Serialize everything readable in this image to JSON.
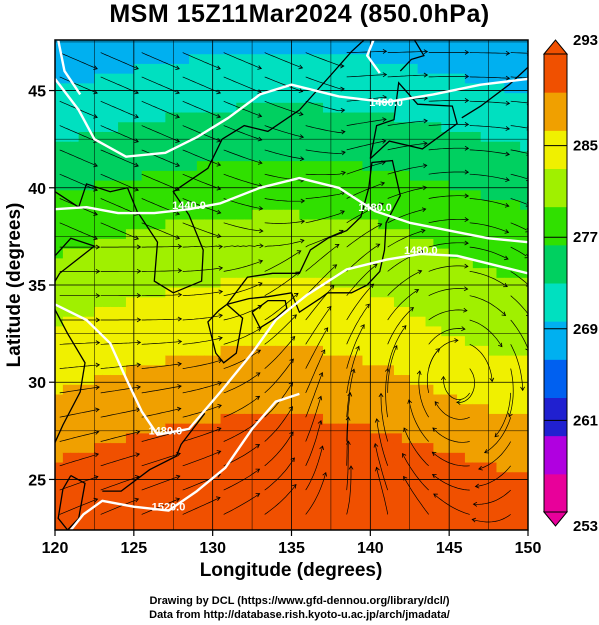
{
  "title": "MSM 15Z11Mar2024 (850.0hPa)",
  "credits": {
    "line1": "Drawing by DCL (https://www.gfd-dennou.org/library/dcl/)",
    "line2": "Data from http://database.rish.kyoto-u.ac.jp/arch/jmadata/"
  },
  "chart_data": {
    "type": "heatmap",
    "title": "MSM 15Z11Mar2024 (850.0hPa)",
    "xlabel": "Longitude (degrees)",
    "ylabel": "Latitude  (degrees)",
    "xlim": [
      120,
      150
    ],
    "ylim": [
      22.4,
      47.6
    ],
    "xticks": [
      120,
      125,
      130,
      135,
      140,
      145,
      150
    ],
    "yticks": [
      25,
      30,
      35,
      40,
      45
    ],
    "grid": true,
    "colorbar": {
      "min": 253,
      "max": 293,
      "tick_labels": [
        293,
        285,
        277,
        269,
        261,
        253
      ],
      "colors": [
        "#e8009a",
        "#b000e0",
        "#2020d0",
        "#0060f0",
        "#00b0f0",
        "#00e0c0",
        "#00d060",
        "#30e000",
        "#a0f000",
        "#f0f000",
        "#f0a000",
        "#f05000"
      ]
    },
    "contour_labels": [
      {
        "text": "1400.0",
        "lon": 141,
        "lat": 44.2
      },
      {
        "text": "1440.0",
        "lon": 128.5,
        "lat": 38.9
      },
      {
        "text": "1480.0",
        "lon": 140.3,
        "lat": 38.8
      },
      {
        "text": "1480.0",
        "lon": 143.2,
        "lat": 36.6
      },
      {
        "text": "1480.0",
        "lon": 127,
        "lat": 27.3
      },
      {
        "text": "1520.0",
        "lon": 127.2,
        "lat": 23.4
      }
    ]
  }
}
